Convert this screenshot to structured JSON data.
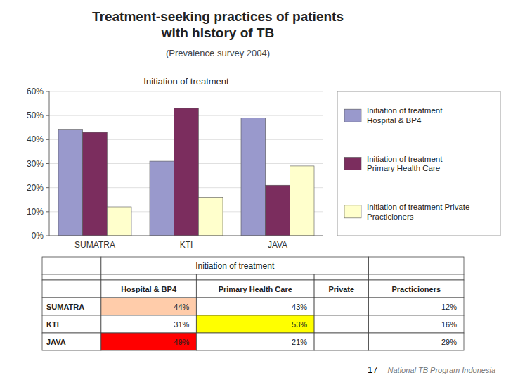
{
  "chart_data": [
    {
      "type": "bar",
      "title": "Treatment-seeking practices of patients\nwith history of TB",
      "subtitle": "(Prevalence survey 2004)",
      "annotations": [
        "Initiation of treatment",
        "National TB Program Indonesia",
        "17"
      ],
      "categories": [
        "SUMATRA",
        "KTI",
        "JAVA"
      ],
      "series": [
        {
          "name": "Initiation of treatment\nHospital & BP4",
          "values": [
            44,
            31,
            49
          ],
          "color": "#9999CC"
        },
        {
          "name": "Initiation of treatment\nPrimary Health Care",
          "values": [
            43,
            53,
            21
          ],
          "color": "#7B2D5E"
        },
        {
          "name": "Initiation of treatment Private\nPracticioners",
          "values": [
            12,
            16,
            29
          ],
          "color": "#FFFFCC"
        }
      ],
      "ylim": [
        0,
        60
      ],
      "yticks": [
        {
          "value": 0,
          "label": "0%"
        },
        {
          "value": 10,
          "label": "10%"
        },
        {
          "value": 20,
          "label": "20%"
        },
        {
          "value": 30,
          "label": "30%"
        },
        {
          "value": 40,
          "label": "40%"
        },
        {
          "value": 50,
          "label": "50%"
        },
        {
          "value": 60,
          "label": "60%"
        }
      ],
      "grid": true,
      "legend": "right"
    },
    {
      "type": "table",
      "title": "Initiation of treatment",
      "columns": [
        null,
        "Hospital & BP4",
        "Primary Health Care",
        "Private",
        "Practicioners"
      ],
      "rows": [
        [
          "SUMATRA",
          "44%",
          "43%",
          null,
          "12%"
        ],
        [
          "KTI",
          "31%",
          "53%",
          null,
          "16%"
        ],
        [
          "JAVA",
          "49%",
          "21%",
          null,
          "29%"
        ]
      ],
      "colors": [
        [
          null,
          "#FFCCAA",
          null,
          null,
          null
        ],
        [
          null,
          null,
          "#FFFF00",
          null,
          null
        ],
        [
          null,
          "#FF0000",
          null,
          null,
          null
        ]
      ]
    }
  ]
}
